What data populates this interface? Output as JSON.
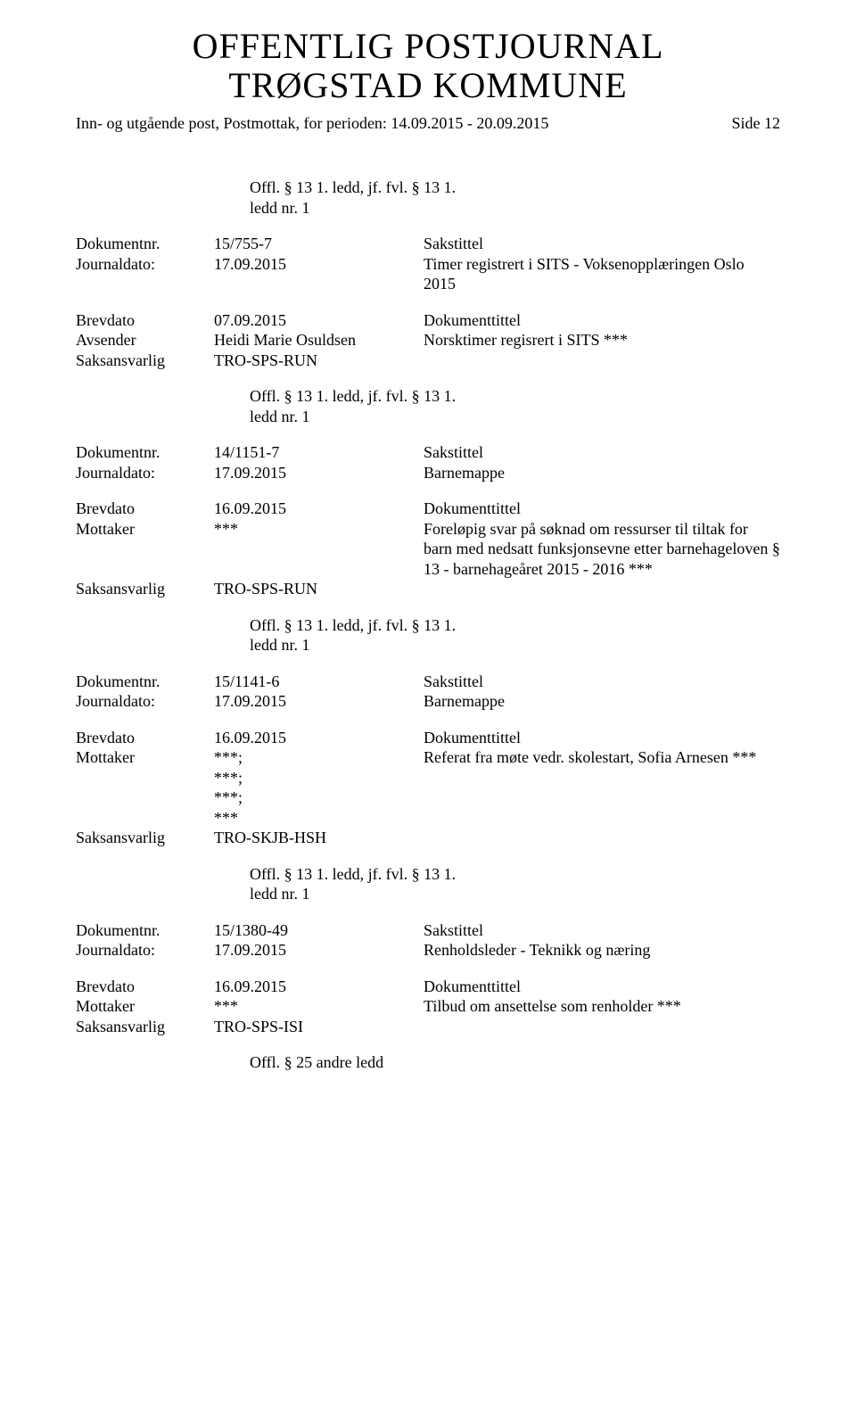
{
  "title_line1": "OFFENTLIG POSTJOURNAL",
  "title_line2": "TRØGSTAD KOMMUNE",
  "subtitle": "Inn- og utgående post, Postmottak, for perioden: 14.09.2015 - 20.09.2015",
  "page_label": "Side 12",
  "offl_text": "Offl. § 13 1. ledd, jf. fvl. § 13 1. ledd nr. 1",
  "offl_alt": "Offl. § 25 andre ledd",
  "labels": {
    "dokumentnr": "Dokumentnr.",
    "journaldato": "Journaldato:",
    "brevdato": "Brevdato",
    "avsender": "Avsender",
    "mottaker": "Mottaker",
    "saksansvarlig": "Saksansvarlig",
    "sakstittel": "Sakstittel",
    "dokumenttittel": "Dokumenttittel"
  },
  "records": [
    {
      "dokumentnr": "15/755-7",
      "journaldato": "17.09.2015",
      "sakstittel_text": "Timer registrert i SITS - Voksenopplæringen Oslo 2015",
      "brevdato": "07.09.2015",
      "party_label": "Avsender",
      "party_value": "Heidi Marie Osuldsen",
      "dokumenttittel_text": "Norsktimer regisrert i SITS ***",
      "saksansvarlig": "TRO-SPS-RUN",
      "offl_after": "std"
    },
    {
      "dokumentnr": "14/1151-7",
      "journaldato": "17.09.2015",
      "sakstittel_text": "Barnemappe",
      "brevdato": "16.09.2015",
      "party_label": "Mottaker",
      "party_value": "***",
      "dokumenttittel_text": "Foreløpig svar på søknad om ressurser til tiltak for barn med nedsatt funksjonsevne etter barnehageloven § 13 - barnehageåret 2015 - 2016 ***",
      "saksansvarlig": "TRO-SPS-RUN",
      "offl_after": "std"
    },
    {
      "dokumentnr": "15/1141-6",
      "journaldato": "17.09.2015",
      "sakstittel_text": "Barnemappe",
      "brevdato": "16.09.2015",
      "party_label": "Mottaker",
      "party_value": "***;\n***;\n***;\n***",
      "dokumenttittel_text": "Referat fra møte vedr. skolestart, Sofia Arnesen ***",
      "saksansvarlig": "TRO-SKJB-HSH",
      "offl_after": "std"
    },
    {
      "dokumentnr": "15/1380-49",
      "journaldato": "17.09.2015",
      "sakstittel_text": "Renholdsleder - Teknikk og næring",
      "brevdato": "16.09.2015",
      "party_label": "Mottaker",
      "party_value": "***",
      "dokumenttittel_text": "Tilbud om ansettelse som renholder ***",
      "saksansvarlig": "TRO-SPS-ISI",
      "offl_after": "alt"
    }
  ]
}
